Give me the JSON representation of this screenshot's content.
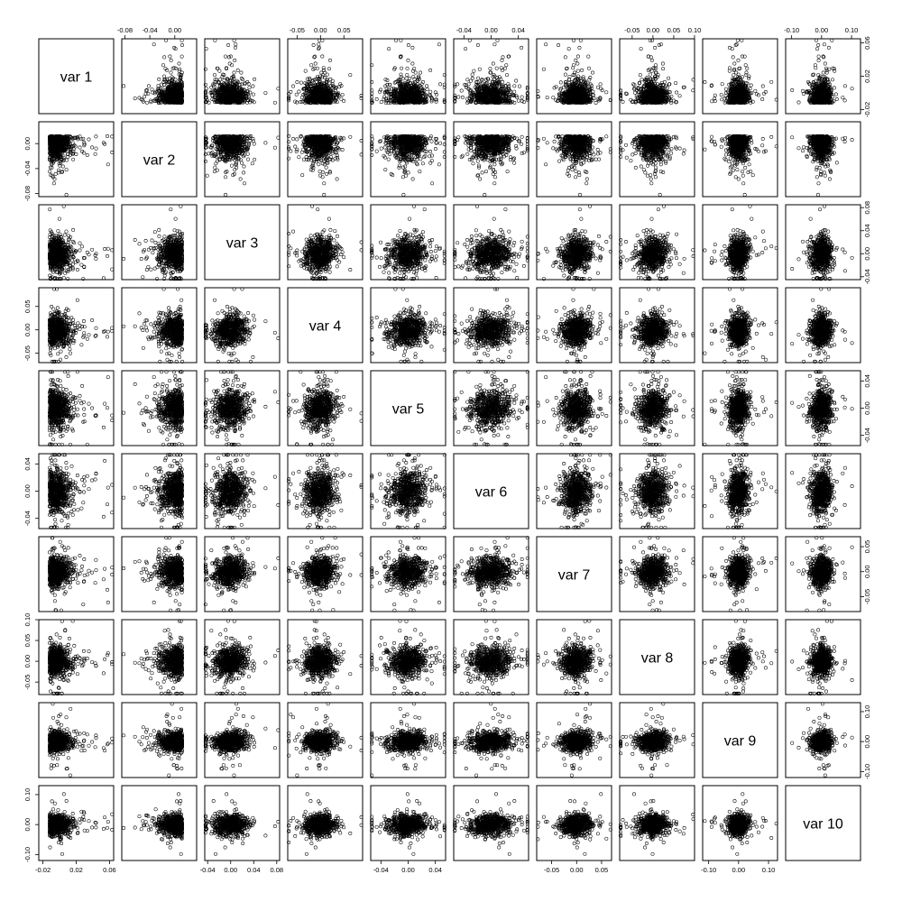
{
  "chart_data": {
    "type": "scatter",
    "variables": [
      "var 1",
      "var 2",
      "var 3",
      "var 4",
      "var 5",
      "var 6",
      "var 7",
      "var 8",
      "var 9",
      "var 10"
    ],
    "ranges": [
      [
        -0.025,
        0.065
      ],
      [
        -0.085,
        0.035
      ],
      [
        -0.045,
        0.085
      ],
      [
        -0.07,
        0.09
      ],
      [
        -0.055,
        0.055
      ],
      [
        -0.055,
        0.055
      ],
      [
        -0.08,
        0.07
      ],
      [
        -0.08,
        0.1
      ],
      [
        -0.12,
        0.13
      ],
      [
        -0.12,
        0.13
      ]
    ],
    "spread": [
      0.012,
      0.015,
      0.014,
      0.016,
      0.013,
      0.015,
      0.015,
      0.018,
      0.016,
      0.016
    ],
    "ticks": [
      {
        "values": [
          -0.02,
          0.02,
          0.06
        ],
        "labels": [
          "-0.02",
          "0.02",
          "0.06"
        ],
        "sides": [
          "bottom",
          "right"
        ]
      },
      {
        "values": [
          -0.08,
          -0.04,
          0.0
        ],
        "labels": [
          "-0.08",
          "-0.04",
          "0.00"
        ],
        "sides": [
          "top",
          "left"
        ]
      },
      {
        "values": [
          -0.04,
          0.0,
          0.04,
          0.08
        ],
        "labels": [
          "-0.04",
          "0.00",
          "0.04",
          "0.08"
        ],
        "sides": [
          "bottom",
          "right"
        ]
      },
      {
        "values": [
          -0.05,
          0.0,
          0.05
        ],
        "labels": [
          "-0.05",
          "0.00",
          "0.05"
        ],
        "sides": [
          "top",
          "left"
        ]
      },
      {
        "values": [
          -0.04,
          0.0,
          0.04
        ],
        "labels": [
          "-0.04",
          "0.00",
          "0.04"
        ],
        "sides": [
          "bottom",
          "right"
        ]
      },
      {
        "values": [
          -0.04,
          0.0,
          0.04
        ],
        "labels": [
          "-0.04",
          "0.00",
          "0.04"
        ],
        "sides": [
          "top",
          "left"
        ]
      },
      {
        "values": [
          -0.05,
          0.0,
          0.05
        ],
        "labels": [
          "-0.05",
          "0.00",
          "0.05"
        ],
        "sides": [
          "bottom",
          "right"
        ]
      },
      {
        "values": [
          -0.05,
          0.0,
          0.05,
          0.1
        ],
        "labels": [
          "-0.05",
          "0.00",
          "0.05",
          "0.10"
        ],
        "sides": [
          "top",
          "left"
        ]
      },
      {
        "values": [
          -0.1,
          0.0,
          0.1
        ],
        "labels": [
          "-0.10",
          "0.00",
          "0.10"
        ],
        "sides": [
          "bottom",
          "right"
        ]
      },
      {
        "values": [
          -0.1,
          0.0,
          0.1
        ],
        "labels": [
          "-0.10",
          "0.00",
          "0.10"
        ],
        "sides": [
          "top",
          "left"
        ]
      }
    ],
    "points_per_panel": 650,
    "marker": "open-circle",
    "grid": false,
    "legend": "none"
  }
}
